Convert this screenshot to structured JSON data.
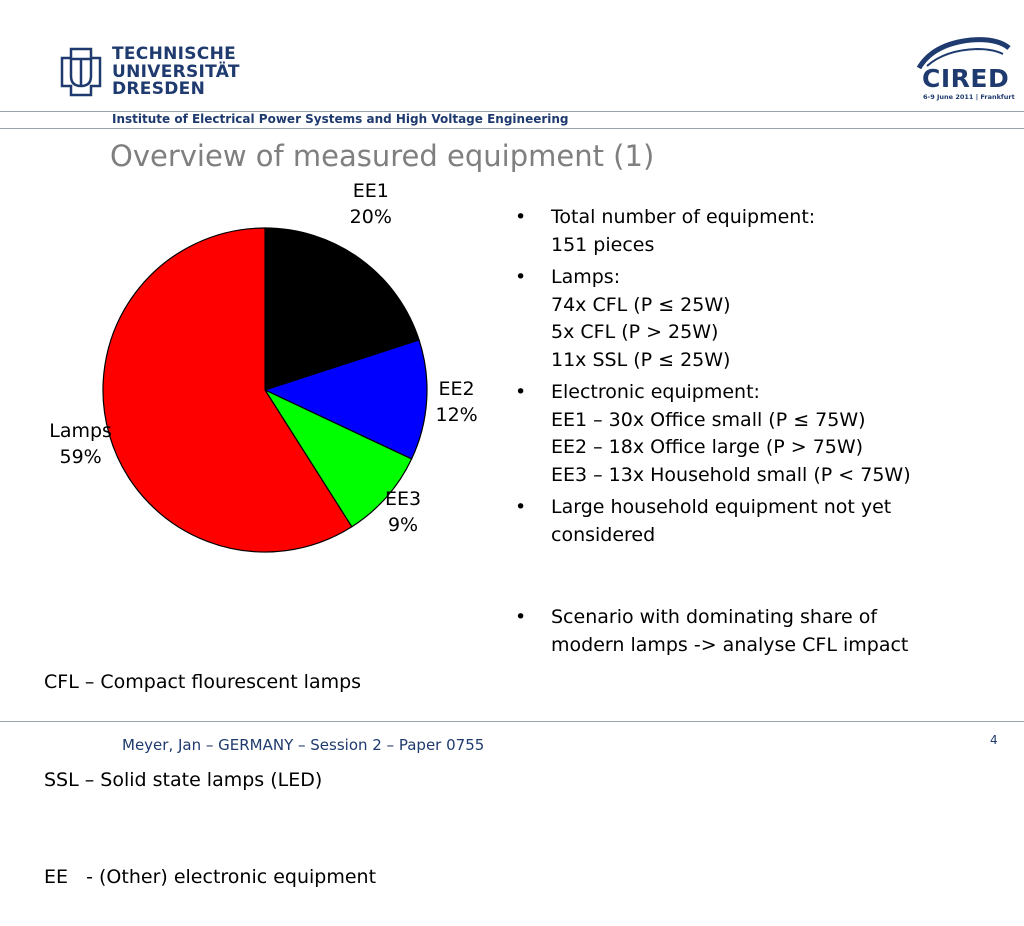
{
  "header": {
    "university_lines": [
      "TECHNISCHE",
      "UNIVERSITÄT",
      "DRESDEN"
    ],
    "conference_logo_text": "CIRED",
    "conference_date": "6-9 June 2011 | Frankfurt",
    "institute": "Institute of Electrical Power Systems and High Voltage Engineering",
    "brand_color": "#1e3a6e"
  },
  "slide": {
    "title": "Overview of measured equipment (1)"
  },
  "chart_data": {
    "type": "pie",
    "title": "",
    "slices": [
      {
        "name": "EE1",
        "value": 20,
        "label": "20%",
        "color": "#000000"
      },
      {
        "name": "EE2",
        "value": 12,
        "label": "12%",
        "color": "#0000ff"
      },
      {
        "name": "EE3",
        "value": 9,
        "label": "9%",
        "color": "#00ff00"
      },
      {
        "name": "Lamps",
        "value": 59,
        "label": "59%",
        "color": "#ff0000"
      }
    ],
    "start_angle_deg": 0,
    "direction": "clockwise",
    "label_position": "outside"
  },
  "bullets": [
    {
      "lines": [
        "Total number of equipment:",
        "151 pieces"
      ]
    },
    {
      "lines": [
        "Lamps:",
        "74x CFL (P ≤ 25W)",
        "5x CFL (P > 25W)",
        "11x SSL (P ≤ 25W)"
      ]
    },
    {
      "lines": [
        "Electronic equipment:",
        "EE1 – 30x Office small (P ≤ 75W)",
        "EE2 – 18x Office large (P > 75W)",
        "EE3 – 13x Household small (P < 75W)"
      ]
    },
    {
      "lines": [
        "Large household equipment not yet",
        "considered"
      ]
    }
  ],
  "bullet_last": {
    "lines": [
      "Scenario with dominating share of",
      "modern lamps -> analyse CFL impact"
    ]
  },
  "abbreviations": [
    "CFL – Compact flourescent lamps",
    "SSL – Solid state lamps (LED)",
    "EE   - (Other) electronic equipment"
  ],
  "footer": {
    "text": "Meyer, Jan – GERMANY – Session 2 – Paper 0755",
    "page_number": "4"
  }
}
